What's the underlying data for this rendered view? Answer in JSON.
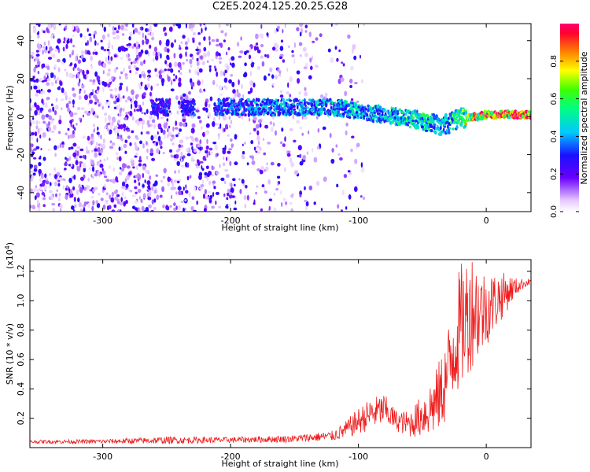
{
  "title": "C2E5.2024.125.20.25.G28",
  "colors": {
    "snr_line": "#ee1c1c",
    "background": "#ffffff",
    "axis": "#000000"
  },
  "chart_data": [
    {
      "type": "heatmap",
      "xlabel": "Height of straight line (km)",
      "ylabel": "Frequency (Hz)",
      "xlim": [
        -357,
        35
      ],
      "ylim": [
        -50,
        49
      ],
      "xticks": [
        -300,
        -200,
        -100,
        0
      ],
      "yticks": [
        -40,
        -20,
        0,
        20,
        40
      ],
      "tick_labels_x": [
        "-300",
        "-200",
        "-100",
        "0"
      ],
      "tick_labels_y": [
        "-40",
        "-20",
        "0",
        "20",
        "40"
      ],
      "colormap": "rainbow",
      "colorbar": {
        "label": "Normalized spectral amplitude",
        "range": [
          0,
          1
        ],
        "ticks": [
          0.0,
          0.2,
          0.4,
          0.6,
          0.8
        ],
        "tick_labels": [
          "0.0",
          "0.2",
          "0.4",
          "0.6",
          "0.8"
        ]
      },
      "signal_band": {
        "x": [
          -260,
          -230,
          -200,
          -150,
          -120,
          -100,
          -80,
          -60,
          -45,
          -35,
          -20,
          -10,
          0,
          35
        ],
        "freq_center": [
          5,
          5,
          5,
          5,
          5,
          3,
          1,
          -1,
          -3,
          -5,
          -1,
          0,
          1,
          1
        ],
        "amplitude": [
          0.3,
          0.3,
          0.35,
          0.4,
          0.45,
          0.45,
          0.45,
          0.5,
          0.5,
          0.4,
          0.6,
          0.75,
          0.9,
          0.95
        ]
      },
      "noise_region": {
        "x": [
          -357,
          -120
        ],
        "amplitude": 0.18
      }
    },
    {
      "type": "line",
      "xlabel": "Height of straight line (km)",
      "ylabel": "SNR (10 * v/v)",
      "multiplier_label": "(x10",
      "multiplier_exponent": "4",
      "multiplier_close": ")",
      "xlim": [
        -357,
        35
      ],
      "ylim": [
        0,
        12800
      ],
      "xticks": [
        -300,
        -200,
        -100,
        0
      ],
      "yticks": [
        2000,
        4000,
        6000,
        8000,
        10000,
        12000
      ],
      "tick_labels_x": [
        "-300",
        "-200",
        "-100",
        "0"
      ],
      "tick_labels_y": [
        "0.2",
        "0.4",
        "0.6",
        "0.8",
        "1.0",
        "1.2"
      ],
      "series": [
        {
          "x": [
            -357,
            -300,
            -250,
            -200,
            -150,
            -120,
            -110,
            -100,
            -90,
            -80,
            -70,
            -60,
            -50,
            -40,
            -35,
            -30,
            -25,
            -20,
            -15,
            -10,
            -5,
            0,
            5,
            10,
            15,
            20,
            25,
            30,
            35
          ],
          "y": [
            400,
            420,
            500,
            520,
            600,
            800,
            1200,
            1800,
            2300,
            2600,
            1800,
            1600,
            2200,
            3000,
            3800,
            5000,
            7200,
            8200,
            9000,
            9600,
            9200,
            9500,
            9800,
            10200,
            10500,
            10800,
            11000,
            11200,
            11300
          ],
          "spread": [
            120,
            150,
            250,
            200,
            250,
            350,
            600,
            900,
            1100,
            1100,
            700,
            900,
            1500,
            2200,
            2600,
            3200,
            4000,
            4300,
            4200,
            4000,
            3200,
            2600,
            2200,
            1800,
            1400,
            900,
            500,
            300,
            200
          ]
        }
      ]
    }
  ]
}
